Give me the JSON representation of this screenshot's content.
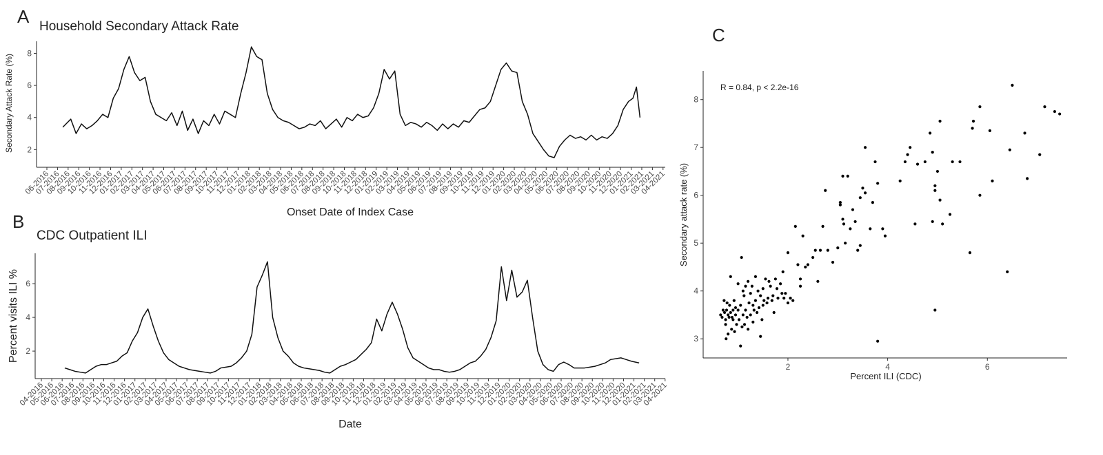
{
  "chart_data": [
    {
      "type": "line",
      "panel": "A",
      "title": "Household Secondary Attack Rate",
      "x_label": "Onset Date of Index Case",
      "y_label": "Secondary Attack Rate (%)",
      "color": "#111111",
      "ylim": [
        0.9,
        8.75
      ],
      "yticks": [
        2,
        4,
        6,
        8
      ],
      "xticks": [
        "06-2016",
        "07-2016",
        "08-2016",
        "09-2016",
        "10-2016",
        "11-2016",
        "12-2016",
        "01-2017",
        "02-2017",
        "03-2017",
        "04-2017",
        "05-2017",
        "06-2017",
        "07-2017",
        "08-2017",
        "09-2017",
        "10-2017",
        "11-2017",
        "12-2017",
        "01-2018",
        "02-2018",
        "03-2018",
        "04-2018",
        "05-2018",
        "06-2018",
        "07-2018",
        "08-2018",
        "09-2018",
        "10-2018",
        "11-2018",
        "12-2018",
        "01-2019",
        "02-2019",
        "03-2019",
        "04-2019",
        "05-2019",
        "06-2019",
        "07-2019",
        "08-2019",
        "09-2019",
        "10-2019",
        "11-2019",
        "12-2019",
        "01-2020",
        "02-2020",
        "03-2020",
        "04-2020",
        "05-2020",
        "06-2020",
        "07-2020",
        "08-2020",
        "09-2020",
        "10-2020",
        "11-2020",
        "12-2020",
        "01-2021",
        "02-2021",
        "03-2021",
        "04-2021"
      ],
      "x": [
        "07-2016",
        "08-2016",
        "08-2016",
        "09-2016",
        "09-2016",
        "10-2016",
        "10-2016",
        "11-2016",
        "11-2016",
        "12-2016",
        "12-2016",
        "01-2017",
        "01-2017",
        "02-2017",
        "02-2017",
        "03-2017",
        "03-2017",
        "04-2017",
        "04-2017",
        "05-2017",
        "05-2017",
        "06-2017",
        "06-2017",
        "07-2017",
        "07-2017",
        "08-2017",
        "08-2017",
        "09-2017",
        "09-2017",
        "10-2017",
        "10-2017",
        "11-2017",
        "11-2017",
        "12-2017",
        "12-2017",
        "01-2018",
        "01-2018",
        "02-2018",
        "02-2018",
        "03-2018",
        "03-2018",
        "04-2018",
        "04-2018",
        "05-2018",
        "05-2018",
        "06-2018",
        "06-2018",
        "07-2018",
        "07-2018",
        "08-2018",
        "08-2018",
        "09-2018",
        "09-2018",
        "10-2018",
        "10-2018",
        "11-2018",
        "11-2018",
        "12-2018",
        "12-2018",
        "01-2019",
        "01-2019",
        "02-2019",
        "02-2019",
        "03-2019",
        "03-2019",
        "04-2019",
        "04-2019",
        "05-2019",
        "05-2019",
        "06-2019",
        "06-2019",
        "07-2019",
        "07-2019",
        "08-2019",
        "08-2019",
        "09-2019",
        "09-2019",
        "10-2019",
        "10-2019",
        "11-2019",
        "11-2019",
        "12-2019",
        "12-2019",
        "01-2020",
        "01-2020",
        "02-2020",
        "02-2020",
        "03-2020",
        "03-2020",
        "04-2020",
        "04-2020",
        "05-2020",
        "05-2020",
        "06-2020",
        "06-2020",
        "07-2020",
        "07-2020",
        "08-2020",
        "08-2020",
        "09-2020",
        "09-2020",
        "10-2020",
        "10-2020",
        "11-2020",
        "11-2020",
        "12-2020",
        "12-2020",
        "01-2021",
        "01-2021",
        "01-2021"
      ],
      "values": [
        3.4,
        3.9,
        3.0,
        3.6,
        3.3,
        3.5,
        3.8,
        4.2,
        4.0,
        5.2,
        5.8,
        7.0,
        7.8,
        6.8,
        6.3,
        6.5,
        5.0,
        4.2,
        4.0,
        3.8,
        4.3,
        3.5,
        4.4,
        3.2,
        3.9,
        3.0,
        3.8,
        3.5,
        4.2,
        3.6,
        4.4,
        4.2,
        4.0,
        5.5,
        6.8,
        8.4,
        7.8,
        7.6,
        5.5,
        4.5,
        4.0,
        3.8,
        3.7,
        3.5,
        3.3,
        3.4,
        3.6,
        3.5,
        3.8,
        3.3,
        3.6,
        3.9,
        3.4,
        4.0,
        3.8,
        4.2,
        4.0,
        4.1,
        4.6,
        5.5,
        7.0,
        6.4,
        6.9,
        4.2,
        3.5,
        3.7,
        3.6,
        3.4,
        3.7,
        3.5,
        3.2,
        3.6,
        3.3,
        3.6,
        3.4,
        3.8,
        3.7,
        4.1,
        4.5,
        4.6,
        5.0,
        6.0,
        7.0,
        7.4,
        6.9,
        6.8,
        5.0,
        4.2,
        3.0,
        2.5,
        2.0,
        1.6,
        1.5,
        2.2,
        2.6,
        2.9,
        2.7,
        2.8,
        2.6,
        2.9,
        2.6,
        2.8,
        2.7,
        3.0,
        3.5,
        4.5,
        5.0,
        5.2,
        5.9,
        4.0
      ]
    },
    {
      "type": "line",
      "panel": "B",
      "title": "CDC Outpatient ILI",
      "x_label": "Date",
      "y_label": "Percent visits ILI %",
      "color": "#111111",
      "ylim": [
        0.37,
        7.8
      ],
      "yticks": [
        2,
        4,
        6
      ],
      "xticks": [
        "04-2016",
        "05-2016",
        "06-2016",
        "07-2016",
        "08-2016",
        "09-2016",
        "10-2016",
        "11-2016",
        "12-2016",
        "01-2017",
        "02-2017",
        "03-2017",
        "04-2017",
        "05-2017",
        "06-2017",
        "07-2017",
        "08-2017",
        "09-2017",
        "10-2017",
        "11-2017",
        "12-2017",
        "01-2018",
        "02-2018",
        "03-2018",
        "04-2018",
        "05-2018",
        "06-2018",
        "07-2018",
        "08-2018",
        "09-2018",
        "10-2018",
        "11-2018",
        "12-2018",
        "01-2019",
        "02-2019",
        "03-2019",
        "04-2019",
        "05-2019",
        "06-2019",
        "07-2019",
        "08-2019",
        "09-2019",
        "10-2019",
        "11-2019",
        "12-2019",
        "01-2020",
        "02-2020",
        "03-2020",
        "04-2020",
        "05-2020",
        "06-2020",
        "07-2020",
        "08-2020",
        "09-2020",
        "10-2020",
        "11-2020",
        "12-2020",
        "01-2021",
        "02-2021",
        "03-2021",
        "04-2021"
      ],
      "x": [
        "06-2016",
        "06-2016",
        "07-2016",
        "07-2016",
        "08-2016",
        "08-2016",
        "09-2016",
        "09-2016",
        "10-2016",
        "10-2016",
        "11-2016",
        "11-2016",
        "12-2016",
        "12-2016",
        "01-2017",
        "01-2017",
        "02-2017",
        "02-2017",
        "03-2017",
        "03-2017",
        "04-2017",
        "04-2017",
        "05-2017",
        "05-2017",
        "06-2017",
        "06-2017",
        "07-2017",
        "07-2017",
        "08-2017",
        "08-2017",
        "09-2017",
        "09-2017",
        "10-2017",
        "10-2017",
        "11-2017",
        "11-2017",
        "12-2017",
        "12-2017",
        "01-2018",
        "01-2018",
        "02-2018",
        "02-2018",
        "03-2018",
        "03-2018",
        "04-2018",
        "04-2018",
        "05-2018",
        "05-2018",
        "06-2018",
        "06-2018",
        "07-2018",
        "07-2018",
        "08-2018",
        "08-2018",
        "09-2018",
        "09-2018",
        "10-2018",
        "10-2018",
        "11-2018",
        "11-2018",
        "12-2018",
        "12-2018",
        "01-2019",
        "01-2019",
        "02-2019",
        "02-2019",
        "03-2019",
        "03-2019",
        "04-2019",
        "04-2019",
        "05-2019",
        "05-2019",
        "06-2019",
        "06-2019",
        "07-2019",
        "07-2019",
        "08-2019",
        "08-2019",
        "09-2019",
        "09-2019",
        "10-2019",
        "10-2019",
        "11-2019",
        "11-2019",
        "12-2019",
        "12-2019",
        "01-2020",
        "01-2020",
        "02-2020",
        "02-2020",
        "03-2020",
        "03-2020",
        "04-2020",
        "04-2020",
        "05-2020",
        "05-2020",
        "06-2020",
        "06-2020",
        "07-2020",
        "07-2020",
        "08-2020",
        "08-2020",
        "09-2020",
        "09-2020",
        "10-2020",
        "10-2020",
        "11-2020",
        "11-2020",
        "12-2020",
        "12-2020",
        "01-2021"
      ],
      "values": [
        1.0,
        0.9,
        0.8,
        0.75,
        0.7,
        0.9,
        1.1,
        1.2,
        1.2,
        1.3,
        1.4,
        1.7,
        1.9,
        2.6,
        3.1,
        4.0,
        4.5,
        3.5,
        2.6,
        1.9,
        1.5,
        1.3,
        1.1,
        1.0,
        0.9,
        0.85,
        0.8,
        0.75,
        0.7,
        0.8,
        1.0,
        1.05,
        1.1,
        1.3,
        1.6,
        2.0,
        3.0,
        5.8,
        6.5,
        7.3,
        4.0,
        2.8,
        2.0,
        1.7,
        1.3,
        1.1,
        1.0,
        0.95,
        0.9,
        0.85,
        0.75,
        0.7,
        0.9,
        1.1,
        1.2,
        1.35,
        1.5,
        1.8,
        2.1,
        2.5,
        3.9,
        3.2,
        4.2,
        4.9,
        4.2,
        3.3,
        2.2,
        1.6,
        1.4,
        1.2,
        1.0,
        0.9,
        0.9,
        0.8,
        0.75,
        0.8,
        0.9,
        1.1,
        1.3,
        1.4,
        1.7,
        2.1,
        2.8,
        3.8,
        7.0,
        5.0,
        6.8,
        5.2,
        5.5,
        6.2,
        4.0,
        2.0,
        1.2,
        0.9,
        0.8,
        1.2,
        1.35,
        1.2,
        1.0,
        1.0,
        1.0,
        1.05,
        1.1,
        1.2,
        1.3,
        1.5,
        1.55,
        1.6,
        1.5,
        1.4,
        1.3
      ]
    },
    {
      "type": "scatter",
      "panel": "C",
      "annotation": "R = 0.84, p < 2.2e-16",
      "x_label": "Percent ILI (CDC)",
      "y_label": "Secondary attack rate (%)",
      "color": "#000000",
      "xlim": [
        0.3,
        7.6
      ],
      "xticks": [
        2,
        4,
        6
      ],
      "ylim": [
        2.6,
        8.6
      ],
      "yticks": [
        3,
        4,
        5,
        6,
        7,
        8
      ],
      "x": [
        0.65,
        0.68,
        0.7,
        0.72,
        0.73,
        0.75,
        0.75,
        0.76,
        0.77,
        0.78,
        0.8,
        0.8,
        0.82,
        0.83,
        0.85,
        0.85,
        0.87,
        0.88,
        0.9,
        0.9,
        0.92,
        0.93,
        0.95,
        0.95,
        0.97,
        1.0,
        1.0,
        1.02,
        1.05,
        1.05,
        1.07,
        1.08,
        1.1,
        1.1,
        1.12,
        1.13,
        1.15,
        1.15,
        1.18,
        1.2,
        1.2,
        1.22,
        1.25,
        1.25,
        1.28,
        1.3,
        1.3,
        1.32,
        1.35,
        1.35,
        1.38,
        1.4,
        1.42,
        1.45,
        1.45,
        1.48,
        1.5,
        1.5,
        1.52,
        1.55,
        1.58,
        1.6,
        1.62,
        1.65,
        1.68,
        1.7,
        1.72,
        1.75,
        1.78,
        1.8,
        1.85,
        1.88,
        1.9,
        1.92,
        1.95,
        2.0,
        2.0,
        2.05,
        2.1,
        2.15,
        2.2,
        2.25,
        2.25,
        2.3,
        2.35,
        2.4,
        2.5,
        2.55,
        2.6,
        2.65,
        2.7,
        2.75,
        2.8,
        2.9,
        3.0,
        3.05,
        3.05,
        3.1,
        3.1,
        3.12,
        3.15,
        3.2,
        3.25,
        3.3,
        3.35,
        3.4,
        3.45,
        3.45,
        3.5,
        3.55,
        3.55,
        3.65,
        3.7,
        3.75,
        3.8,
        3.8,
        3.9,
        3.95,
        4.25,
        4.35,
        4.4,
        4.45,
        4.55,
        4.6,
        4.75,
        4.85,
        4.9,
        4.9,
        4.95,
        4.95,
        4.95,
        5.0,
        5.05,
        5.05,
        5.1,
        5.25,
        5.3,
        5.45,
        5.65,
        5.7,
        5.72,
        5.85,
        5.85,
        6.05,
        6.1,
        6.4,
        6.45,
        6.5,
        6.75,
        6.8,
        7.05,
        7.15,
        7.35,
        7.45
      ],
      "values": [
        3.5,
        3.45,
        3.6,
        3.8,
        3.55,
        3.4,
        3.3,
        3.0,
        3.6,
        3.75,
        3.5,
        3.1,
        3.45,
        3.7,
        4.3,
        3.55,
        3.2,
        3.45,
        3.6,
        3.4,
        3.8,
        3.15,
        3.5,
        3.65,
        3.3,
        3.6,
        4.15,
        3.4,
        2.85,
        3.7,
        4.7,
        3.25,
        3.5,
        4.0,
        3.9,
        3.3,
        4.1,
        3.6,
        3.45,
        3.2,
        4.2,
        3.75,
        3.5,
        3.95,
        4.1,
        3.35,
        3.7,
        3.6,
        4.3,
        3.8,
        3.55,
        4.0,
        3.65,
        3.05,
        3.9,
        3.4,
        3.7,
        4.05,
        3.8,
        4.25,
        3.75,
        3.85,
        4.2,
        4.1,
        3.8,
        3.9,
        3.55,
        4.25,
        4.05,
        3.85,
        4.15,
        3.95,
        4.4,
        3.85,
        3.95,
        4.8,
        3.75,
        3.85,
        3.8,
        5.35,
        4.55,
        4.25,
        4.1,
        5.15,
        4.5,
        4.55,
        4.7,
        4.85,
        4.2,
        4.85,
        5.35,
        6.1,
        4.85,
        4.6,
        4.9,
        5.85,
        5.8,
        6.4,
        5.5,
        5.4,
        5.0,
        6.4,
        5.3,
        5.7,
        5.45,
        4.85,
        5.95,
        4.95,
        6.15,
        6.05,
        7.0,
        5.3,
        5.85,
        6.7,
        6.25,
        2.95,
        5.3,
        5.15,
        6.3,
        6.7,
        6.85,
        7.0,
        5.4,
        6.65,
        6.7,
        7.3,
        6.9,
        5.45,
        3.6,
        6.2,
        6.1,
        6.5,
        5.9,
        7.55,
        5.4,
        5.6,
        6.7,
        6.7,
        4.8,
        7.4,
        7.55,
        6.0,
        7.85,
        7.35,
        6.3,
        4.4,
        6.95,
        8.3,
        7.3,
        6.35,
        6.85,
        7.85,
        7.75,
        7.7
      ]
    }
  ]
}
